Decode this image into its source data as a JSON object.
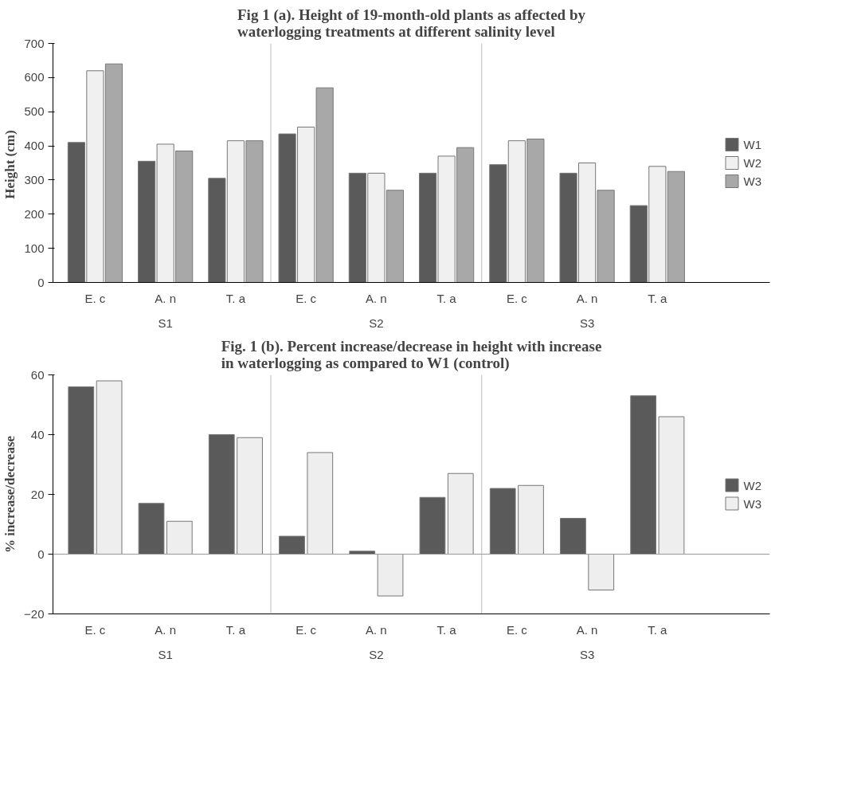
{
  "chart_data": [
    {
      "type": "bar",
      "title": "Fig 1 (a). Height of 19-month-old plants as affected by waterlogging treatments at different salinity level",
      "ylabel": "Height  (cm)",
      "categories": [
        "E. c",
        "A. n",
        "T. a",
        "E. c",
        "A. n",
        "T. a",
        "E. c",
        "A. n",
        "T. a"
      ],
      "annotations": [
        "S1",
        "S2",
        "S3"
      ],
      "series": [
        {
          "name": "W1",
          "color": "#5a5a5a",
          "values": [
            410,
            355,
            305,
            435,
            320,
            320,
            345,
            320,
            225
          ]
        },
        {
          "name": "W2",
          "color": "#f0f0f0",
          "values": [
            620,
            405,
            415,
            455,
            320,
            370,
            415,
            350,
            340
          ]
        },
        {
          "name": "W3",
          "color": "#a8a8a8",
          "values": [
            640,
            385,
            415,
            570,
            270,
            395,
            420,
            270,
            325
          ]
        }
      ],
      "ylim": [
        0,
        700
      ],
      "yticks": [
        0,
        100,
        200,
        300,
        400,
        500,
        600,
        700
      ],
      "grid": false,
      "legend": "right"
    },
    {
      "type": "bar",
      "title": "Fig. 1 (b). Percent increase/decrease in height with increase in waterlogging as compared to W1 (control)",
      "ylabel": "% increase/decrease",
      "categories": [
        "E. c",
        "A. n",
        "T. a",
        "E. c",
        "A. n",
        "T. a",
        "E. c",
        "A. n",
        "T. a"
      ],
      "annotations": [
        "S1",
        "S2",
        "S3"
      ],
      "series": [
        {
          "name": "W2",
          "color": "#5a5a5a",
          "values": [
            56,
            17,
            40,
            6,
            1,
            19,
            22,
            12,
            53
          ]
        },
        {
          "name": "W3",
          "color": "#eeeeee",
          "values": [
            58,
            11,
            39,
            34,
            -14,
            27,
            23,
            -12,
            46
          ]
        }
      ],
      "ylim": [
        -20,
        60
      ],
      "yticks": [
        -20,
        0,
        20,
        40,
        60
      ],
      "grid": false,
      "legend": "right"
    }
  ]
}
